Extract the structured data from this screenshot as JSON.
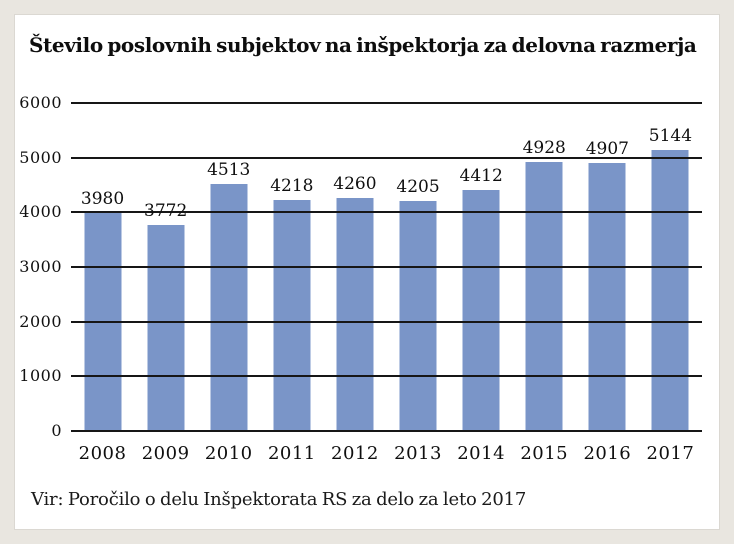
{
  "frame": {
    "outer_background": "#e9e6e0",
    "panel_background": "#ffffff",
    "panel_border": "#dbd8d2"
  },
  "title": "Število poslovnih subjektov na inšpektorja za delovna razmerja",
  "source": "Vir: Poročilo o delu Inšpektorata RS za delo za leto 2017",
  "chart_data": {
    "type": "bar",
    "title": "Število poslovnih subjektov na inšpektorja za delovna razmerja",
    "categories": [
      "2008",
      "2009",
      "2010",
      "2011",
      "2012",
      "2013",
      "2014",
      "2015",
      "2016",
      "2017"
    ],
    "values": [
      3980,
      3772,
      4513,
      4218,
      4260,
      4205,
      4412,
      4928,
      4907,
      5144
    ],
    "xlabel": "",
    "ylabel": "",
    "ylim": [
      0,
      6000
    ],
    "yticks": [
      0,
      1000,
      2000,
      3000,
      4000,
      5000,
      6000
    ],
    "grid": true,
    "gridlines_above_bars": true,
    "data_labels": true,
    "legend": false,
    "bar_color": "#7a95c8",
    "gridline_color": "#161616",
    "text_color": "#111111"
  }
}
